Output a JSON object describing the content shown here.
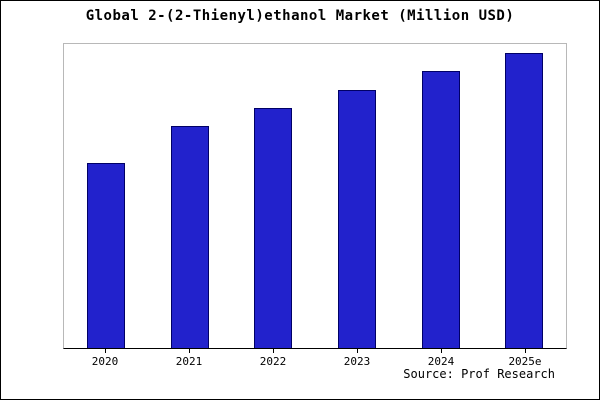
{
  "title": "Global 2-(2-Thienyl)ethanol Market (Million USD)",
  "source": "Source: Prof Research",
  "chart_data": {
    "type": "bar",
    "title": "Global 2-(2-Thienyl)ethanol Market (Million USD)",
    "categories": [
      "2020",
      "2021",
      "2022",
      "2023",
      "2024",
      "2025e"
    ],
    "values": [
      61,
      73,
      79,
      85,
      91,
      97
    ],
    "xlabel": "",
    "ylabel": "",
    "ylim": [
      0,
      100
    ],
    "grid": false,
    "legend": false,
    "bar_color": "#2222cc",
    "bar_border_color": "#000066",
    "annotations": [
      "Source: Prof Research"
    ]
  }
}
